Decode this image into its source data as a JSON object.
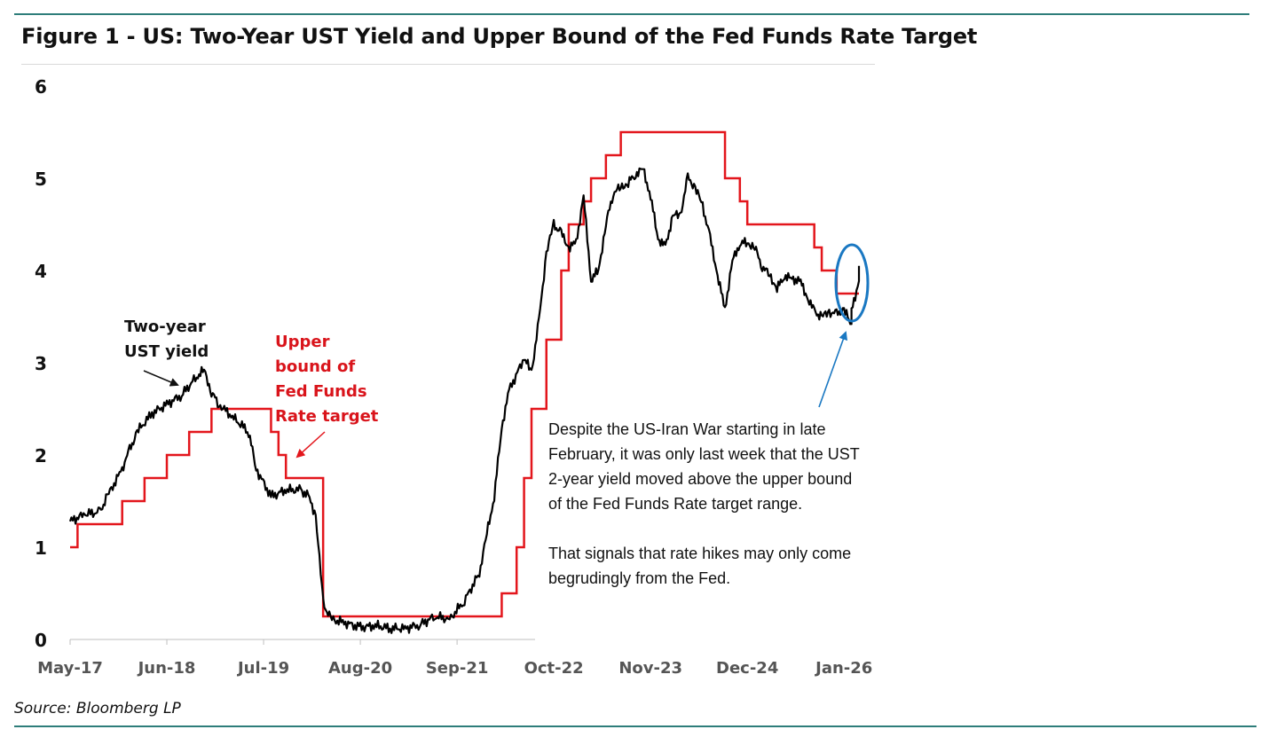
{
  "title": "Figure 1 - US: Two-Year UST Yield and Upper Bound of the Fed Funds Rate Target",
  "source": "Source: Bloomberg LP",
  "annotation": {
    "p1": "Despite the US-Iran War starting in late February, it was only last week that the UST 2-year yield moved above the upper bound of the Fed Funds Rate target range.",
    "p2": "That signals that rate hikes may only come begrudingly from the Fed."
  },
  "labels": {
    "ust_line1": "Two-year",
    "ust_line2": "UST yield",
    "fed_line1": "Upper",
    "fed_line2": "bound of",
    "fed_line3": "Fed Funds",
    "fed_line4": "Rate target"
  },
  "colors": {
    "ust": "#000000",
    "fed": "#e3161c",
    "highlight": "#1a78c2",
    "rule": "#2e7d7a"
  },
  "chart_data": {
    "type": "line",
    "title": "Figure 1 - US: Two-Year UST Yield and Upper Bound of the Fed Funds Rate Target",
    "xlabel": "",
    "ylabel": "",
    "ylim": [
      0,
      6
    ],
    "yticks": [
      "0",
      "1",
      "2",
      "3",
      "4",
      "5",
      "6"
    ],
    "xticks": [
      "May-17",
      "Jun-18",
      "Jul-19",
      "Aug-20",
      "Sep-21",
      "Oct-22",
      "Nov-23",
      "Dec-24",
      "Jan-26"
    ],
    "xlim": [
      "2017-05",
      "2026-03"
    ],
    "grid": false,
    "series": [
      {
        "name": "Two-year UST yield",
        "points": [
          [
            "2017-05",
            1.28
          ],
          [
            "2017-07",
            1.36
          ],
          [
            "2017-09",
            1.38
          ],
          [
            "2017-10",
            1.55
          ],
          [
            "2017-12",
            1.85
          ],
          [
            "2018-01",
            2.05
          ],
          [
            "2018-02",
            2.25
          ],
          [
            "2018-04",
            2.45
          ],
          [
            "2018-06",
            2.55
          ],
          [
            "2018-08",
            2.65
          ],
          [
            "2018-10",
            2.85
          ],
          [
            "2018-11",
            2.92
          ],
          [
            "2018-12",
            2.68
          ],
          [
            "2019-01",
            2.55
          ],
          [
            "2019-03",
            2.4
          ],
          [
            "2019-05",
            2.25
          ],
          [
            "2019-06",
            1.85
          ],
          [
            "2019-08",
            1.55
          ],
          [
            "2019-10",
            1.62
          ],
          [
            "2019-12",
            1.62
          ],
          [
            "2020-01",
            1.55
          ],
          [
            "2020-02",
            1.35
          ],
          [
            "2020-03",
            0.4
          ],
          [
            "2020-04",
            0.22
          ],
          [
            "2020-06",
            0.18
          ],
          [
            "2020-08",
            0.13
          ],
          [
            "2020-10",
            0.15
          ],
          [
            "2020-12",
            0.12
          ],
          [
            "2021-02",
            0.12
          ],
          [
            "2021-04",
            0.16
          ],
          [
            "2021-06",
            0.25
          ],
          [
            "2021-08",
            0.22
          ],
          [
            "2021-10",
            0.42
          ],
          [
            "2021-12",
            0.72
          ],
          [
            "2022-01",
            1.15
          ],
          [
            "2022-02",
            1.55
          ],
          [
            "2022-03",
            2.3
          ],
          [
            "2022-04",
            2.7
          ],
          [
            "2022-06",
            3.05
          ],
          [
            "2022-07",
            2.9
          ],
          [
            "2022-08",
            3.45
          ],
          [
            "2022-09",
            4.2
          ],
          [
            "2022-10",
            4.5
          ],
          [
            "2022-11",
            4.4
          ],
          [
            "2022-12",
            4.25
          ],
          [
            "2023-01",
            4.3
          ],
          [
            "2023-02",
            4.8
          ],
          [
            "2023-03",
            3.9
          ],
          [
            "2023-04",
            4.0
          ],
          [
            "2023-05",
            4.5
          ],
          [
            "2023-06",
            4.85
          ],
          [
            "2023-07",
            4.9
          ],
          [
            "2023-08",
            4.95
          ],
          [
            "2023-09",
            5.05
          ],
          [
            "2023-10",
            5.1
          ],
          [
            "2023-11",
            4.8
          ],
          [
            "2023-12",
            4.35
          ],
          [
            "2024-01",
            4.25
          ],
          [
            "2024-02",
            4.6
          ],
          [
            "2024-03",
            4.6
          ],
          [
            "2024-04",
            5.0
          ],
          [
            "2024-05",
            4.9
          ],
          [
            "2024-06",
            4.7
          ],
          [
            "2024-07",
            4.35
          ],
          [
            "2024-08",
            3.95
          ],
          [
            "2024-09",
            3.58
          ],
          [
            "2024-10",
            4.1
          ],
          [
            "2024-11",
            4.3
          ],
          [
            "2024-12",
            4.3
          ],
          [
            "2025-01",
            4.25
          ],
          [
            "2025-02",
            4.05
          ],
          [
            "2025-03",
            3.95
          ],
          [
            "2025-04",
            3.8
          ],
          [
            "2025-05",
            3.95
          ],
          [
            "2025-06",
            3.9
          ],
          [
            "2025-07",
            3.9
          ],
          [
            "2025-08",
            3.72
          ],
          [
            "2025-09",
            3.55
          ],
          [
            "2025-10",
            3.5
          ],
          [
            "2025-11",
            3.55
          ],
          [
            "2025-12",
            3.52
          ],
          [
            "2026-01",
            3.58
          ],
          [
            "2026-02",
            3.4
          ],
          [
            "2026-02",
            3.55
          ],
          [
            "2026-03",
            3.9
          ],
          [
            "2026-03",
            4.05
          ]
        ]
      },
      {
        "name": "Upper bound of Fed Funds Rate target",
        "step": true,
        "points": [
          [
            "2017-05",
            1.0
          ],
          [
            "2017-06",
            1.25
          ],
          [
            "2017-12",
            1.5
          ],
          [
            "2018-03",
            1.75
          ],
          [
            "2018-06",
            2.0
          ],
          [
            "2018-09",
            2.25
          ],
          [
            "2018-12",
            2.5
          ],
          [
            "2019-08",
            2.25
          ],
          [
            "2019-09",
            2.0
          ],
          [
            "2019-10",
            1.75
          ],
          [
            "2020-03",
            1.25
          ],
          [
            "2020-03",
            0.25
          ],
          [
            "2022-03",
            0.5
          ],
          [
            "2022-05",
            1.0
          ],
          [
            "2022-06",
            1.75
          ],
          [
            "2022-07",
            2.5
          ],
          [
            "2022-09",
            3.25
          ],
          [
            "2022-11",
            4.0
          ],
          [
            "2022-12",
            4.5
          ],
          [
            "2023-02",
            4.75
          ],
          [
            "2023-03",
            5.0
          ],
          [
            "2023-05",
            5.25
          ],
          [
            "2023-07",
            5.5
          ],
          [
            "2024-09",
            5.0
          ],
          [
            "2024-11",
            4.75
          ],
          [
            "2024-12",
            4.5
          ],
          [
            "2025-09",
            4.25
          ],
          [
            "2025-10",
            4.0
          ],
          [
            "2025-12",
            3.75
          ],
          [
            "2026-03",
            3.75
          ]
        ]
      }
    ]
  }
}
